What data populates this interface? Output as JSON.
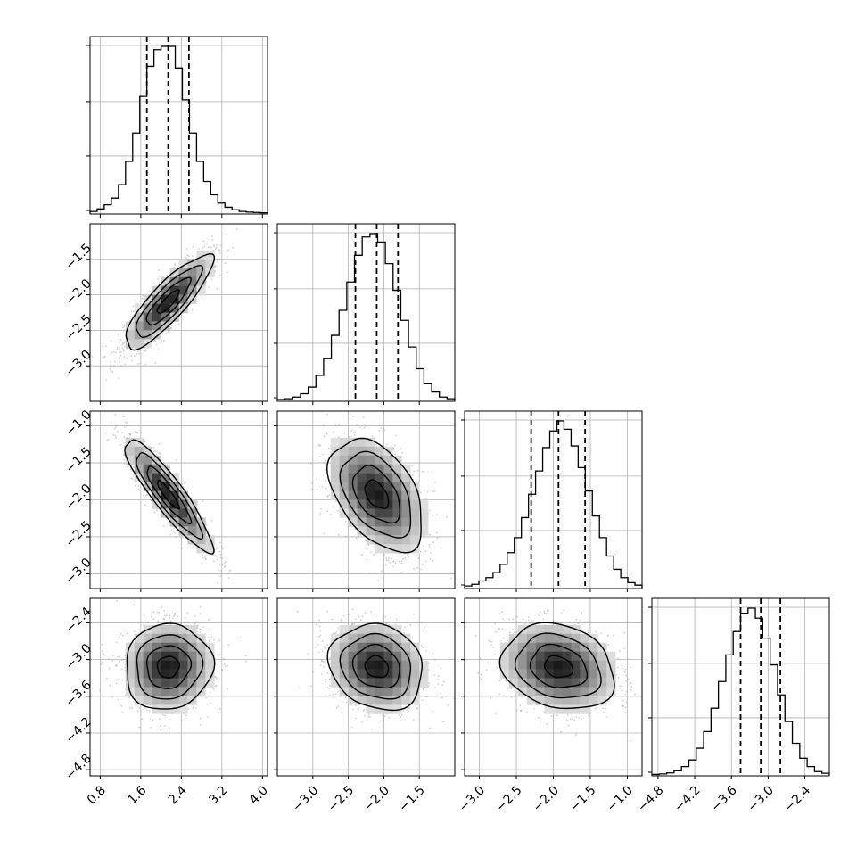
{
  "figure": {
    "type": "corner-plot"
  },
  "chart_data": {
    "type": "corner",
    "grid": true,
    "n_params": 4,
    "params": [
      {
        "range": [
          0.6,
          4.1
        ],
        "ticks": [
          0.8,
          1.6,
          2.4,
          3.2,
          4.0
        ],
        "tick_labels": [
          "0.8",
          "1.6",
          "2.4",
          "3.2",
          "4.0"
        ]
      },
      {
        "range": [
          -3.5,
          -1.0
        ],
        "ticks": [
          -3.0,
          -2.5,
          -2.0,
          -1.5
        ],
        "tick_labels": [
          "−3.0",
          "−2.5",
          "−2.0",
          "−1.5"
        ]
      },
      {
        "range": [
          -3.2,
          -0.8
        ],
        "ticks": [
          -3.0,
          -2.5,
          -2.0,
          -1.5,
          -1.0
        ],
        "tick_labels": [
          "−3.0",
          "−2.5",
          "−2.0",
          "−1.5",
          "−1.0"
        ]
      },
      {
        "range": [
          -4.9,
          -2.0
        ],
        "ticks": [
          -4.8,
          -4.2,
          -3.6,
          -3.0,
          -2.4
        ],
        "tick_labels": [
          "−4.8",
          "−4.2",
          "−3.6",
          "−3.0",
          "−2.4"
        ]
      }
    ],
    "histograms": [
      {
        "x0": 0.6,
        "x1": 4.1,
        "counts": [
          0.01,
          0.025,
          0.05,
          0.09,
          0.17,
          0.31,
          0.48,
          0.7,
          0.88,
          0.98,
          1.0,
          1.0,
          0.87,
          0.68,
          0.48,
          0.31,
          0.19,
          0.11,
          0.06,
          0.035,
          0.02,
          0.01,
          0.006,
          0.004,
          0.002
        ],
        "quantiles": [
          1.72,
          2.14,
          2.55
        ]
      },
      {
        "x0": -3.5,
        "x1": -1.0,
        "counts": [
          0.005,
          0.01,
          0.02,
          0.04,
          0.08,
          0.15,
          0.25,
          0.39,
          0.54,
          0.71,
          0.87,
          0.98,
          1.0,
          0.95,
          0.82,
          0.66,
          0.48,
          0.32,
          0.19,
          0.1,
          0.05,
          0.02,
          0.01
        ],
        "quantiles": [
          -2.4,
          -2.1,
          -1.8
        ]
      },
      {
        "x0": -3.2,
        "x1": -0.8,
        "counts": [
          0.01,
          0.02,
          0.04,
          0.06,
          0.09,
          0.14,
          0.21,
          0.3,
          0.42,
          0.56,
          0.7,
          0.84,
          0.94,
          1.0,
          0.95,
          0.85,
          0.72,
          0.58,
          0.43,
          0.3,
          0.19,
          0.11,
          0.06,
          0.03,
          0.015
        ],
        "quantiles": [
          -2.3,
          -1.93,
          -1.57
        ]
      },
      {
        "x0": -4.9,
        "x1": -2.0,
        "counts": [
          0.003,
          0.006,
          0.012,
          0.025,
          0.05,
          0.09,
          0.16,
          0.26,
          0.4,
          0.56,
          0.72,
          0.86,
          0.97,
          1.0,
          0.94,
          0.82,
          0.66,
          0.48,
          0.32,
          0.19,
          0.1,
          0.05,
          0.02,
          0.01
        ],
        "quantiles": [
          -3.45,
          -3.12,
          -2.8
        ]
      }
    ],
    "pairs": [
      {
        "x": 0,
        "y": 1,
        "mean": [
          2.14,
          -2.1
        ],
        "sd": [
          0.43,
          0.33
        ],
        "rho": 0.85
      },
      {
        "x": 0,
        "y": 2,
        "mean": [
          2.14,
          -1.93
        ],
        "sd": [
          0.43,
          0.38
        ],
        "rho": -0.9
      },
      {
        "x": 1,
        "y": 2,
        "mean": [
          -2.1,
          -1.93
        ],
        "sd": [
          0.33,
          0.38
        ],
        "rho": -0.45
      },
      {
        "x": 0,
        "y": 3,
        "mean": [
          2.14,
          -3.12
        ],
        "sd": [
          0.43,
          0.35
        ],
        "rho": 0.05
      },
      {
        "x": 1,
        "y": 3,
        "mean": [
          -2.1,
          -3.12
        ],
        "sd": [
          0.33,
          0.35
        ],
        "rho": -0.15
      },
      {
        "x": 2,
        "y": 3,
        "mean": [
          -1.93,
          -3.12
        ],
        "sd": [
          0.38,
          0.35
        ],
        "rho": -0.2
      }
    ],
    "contour_levels_sigma": [
      0.5,
      1.0,
      1.5,
      2.0
    ]
  }
}
